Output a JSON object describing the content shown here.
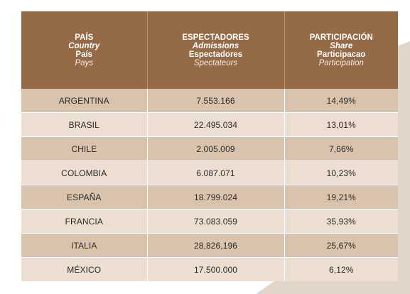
{
  "table": {
    "headers": [
      {
        "es": "PAÍS",
        "en": "Country",
        "pt": "País",
        "fr": "Pays"
      },
      {
        "es": "ESPECTADORES",
        "en": "Admissions",
        "pt": "Espectadores",
        "fr": "Spectateurs"
      },
      {
        "es": "PARTICIPACIÓN",
        "en": "Share",
        "pt": "Participacao",
        "fr": "Participation"
      }
    ],
    "rows": [
      {
        "country": "ARGENTINA",
        "admissions": "7.553.166",
        "share": "14,49%"
      },
      {
        "country": "BRASIL",
        "admissions": "22.495.034",
        "share": "13,01%"
      },
      {
        "country": "CHILE",
        "admissions": "2.005.009",
        "share": "7,66%"
      },
      {
        "country": "COLOMBIA",
        "admissions": "6.087.071",
        "share": "10,23%"
      },
      {
        "country": "ESPAÑA",
        "admissions": "18.799.024",
        "share": "19,21%"
      },
      {
        "country": "FRANCIA",
        "admissions": "73.083.059",
        "share": "35,93%"
      },
      {
        "country": "ITALIA",
        "admissions": "28,826,196",
        "share": "25,67%"
      },
      {
        "country": "MÉXICO",
        "admissions": "17.500.000",
        "share": "6,12%"
      }
    ]
  },
  "colors": {
    "header_bg": "#946a47",
    "row_dark": "#d9c3ad",
    "row_light": "#ecdfd1",
    "decor_shape": "#e2d6cb"
  }
}
